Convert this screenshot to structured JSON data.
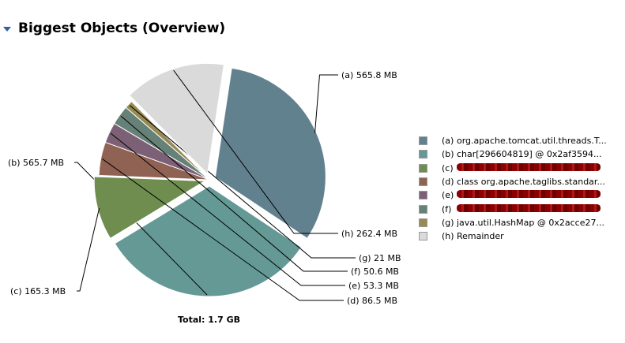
{
  "header": {
    "title": "Biggest Objects (Overview)"
  },
  "total": "Total: 1.7 GB",
  "chart_data": {
    "type": "pie",
    "title": "Biggest Objects (Overview)",
    "unit": "MB",
    "slices": [
      {
        "key": "(a)",
        "value": 565.8,
        "label": "565.8 MB",
        "color": "#62818f",
        "exploded": true
      },
      {
        "key": "(b)",
        "value": 565.7,
        "label": "565.7 MB",
        "color": "#659995",
        "exploded": true
      },
      {
        "key": "(c)",
        "value": 165.3,
        "label": "165.3 MB",
        "color": "#6e8d4f",
        "exploded": true
      },
      {
        "key": "(d)",
        "value": 86.5,
        "label": "86.5 MB",
        "color": "#8f6253",
        "exploded": false
      },
      {
        "key": "(e)",
        "value": 53.3,
        "label": "53.3 MB",
        "color": "#7c6176",
        "exploded": false
      },
      {
        "key": "(f)",
        "value": 50.6,
        "label": "50.6 MB",
        "color": "#668177",
        "exploded": false
      },
      {
        "key": "(g)",
        "value": 21,
        "label": "21 MB",
        "color": "#978a52",
        "exploded": false
      },
      {
        "key": "(h)",
        "value": 262.4,
        "label": "262.4 MB",
        "color": "#dadada",
        "exploded": true
      }
    ]
  },
  "legend": [
    {
      "key": "(a)",
      "text": "org.apache.tomcat.util.threads.T...",
      "color": "#62818f",
      "redacted": false
    },
    {
      "key": "(b)",
      "text": "char[296604819] @ 0x2af3594...",
      "color": "#659995",
      "redacted": false
    },
    {
      "key": "(c)",
      "text": "",
      "color": "#6e8d4f",
      "redacted": true
    },
    {
      "key": "(d)",
      "text": "class org.apache.taglibs.standar...",
      "color": "#8f6253",
      "redacted": false
    },
    {
      "key": "(e)",
      "text": "",
      "color": "#7c6176",
      "redacted": true
    },
    {
      "key": "(f)",
      "text": "",
      "color": "#668177",
      "redacted": true
    },
    {
      "key": "(g)",
      "text": "java.util.HashMap @ 0x2acce27...",
      "color": "#978a52",
      "redacted": false
    },
    {
      "key": "(h)",
      "text": "Remainder",
      "color": "#dadada",
      "redacted": false
    }
  ]
}
